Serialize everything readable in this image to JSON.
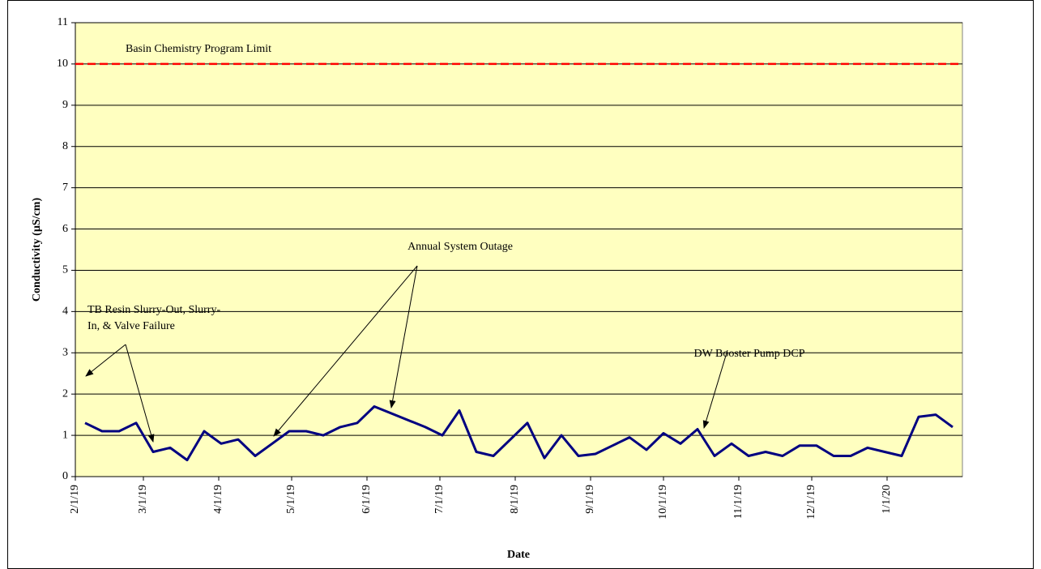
{
  "chart_data": {
    "type": "line",
    "x_label": "Date",
    "y_label": "Conductivity  (µS/cm)",
    "x": [
      "2/5/19",
      "2/12/19",
      "2/19/19",
      "2/26/19",
      "3/5/19",
      "3/12/19",
      "3/19/19",
      "3/26/19",
      "4/2/19",
      "4/9/19",
      "4/16/19",
      "4/23/19",
      "4/30/19",
      "5/7/19",
      "5/14/19",
      "5/21/19",
      "5/28/19",
      "6/4/19",
      "6/25/19",
      "7/2/19",
      "7/9/19",
      "7/16/19",
      "7/23/19",
      "7/30/19",
      "8/6/19",
      "8/13/19",
      "8/20/19",
      "8/27/19",
      "9/3/19",
      "9/10/19",
      "9/17/19",
      "9/24/19",
      "10/1/19",
      "10/8/19",
      "10/15/19",
      "10/22/19",
      "10/29/19",
      "11/5/19",
      "11/12/19",
      "11/19/19",
      "11/26/19",
      "12/3/19",
      "12/10/19",
      "12/17/19",
      "12/24/19",
      "12/31/19",
      "1/7/20",
      "1/14/20",
      "1/21/20",
      "1/28/20"
    ],
    "values": [
      1.3,
      1.1,
      1.1,
      1.3,
      0.6,
      0.7,
      0.4,
      1.1,
      0.8,
      0.9,
      0.5,
      0.8,
      1.1,
      1.1,
      1.0,
      1.2,
      1.3,
      1.7,
      1.2,
      1.0,
      1.6,
      0.6,
      0.5,
      0.9,
      1.3,
      0.45,
      1.0,
      0.5,
      0.55,
      0.75,
      0.95,
      0.65,
      1.05,
      0.8,
      1.15,
      0.5,
      0.8,
      0.5,
      0.6,
      0.5,
      0.75,
      0.75,
      0.5,
      0.5,
      0.7,
      0.6,
      0.5,
      1.45,
      1.5,
      1.2
    ],
    "color": "#000080",
    "xlim": [
      "2/1/19",
      "2/1/20"
    ],
    "xticks": [
      "2/1/19",
      "3/1/19",
      "4/1/19",
      "5/1/19",
      "6/1/19",
      "7/1/19",
      "8/1/19",
      "9/1/19",
      "10/1/19",
      "11/1/19",
      "12/1/19",
      "1/1/20"
    ],
    "ylim": [
      0,
      11
    ],
    "yticks": [
      0,
      1,
      2,
      3,
      4,
      5,
      6,
      7,
      8,
      9,
      10,
      11
    ],
    "grid": true,
    "plot_background": "#ffffc0",
    "reference_lines": [
      {
        "value": 10,
        "label": "Basin Chemistry Program Limit",
        "color": "#ff0000"
      }
    ],
    "annotations": [
      [
        "TB Resin Slurry-Out, Slurry-",
        "In, & Valve Failure"
      ],
      [
        "Annual System Outage"
      ],
      [
        "DW Booster Pump DCP"
      ]
    ]
  }
}
